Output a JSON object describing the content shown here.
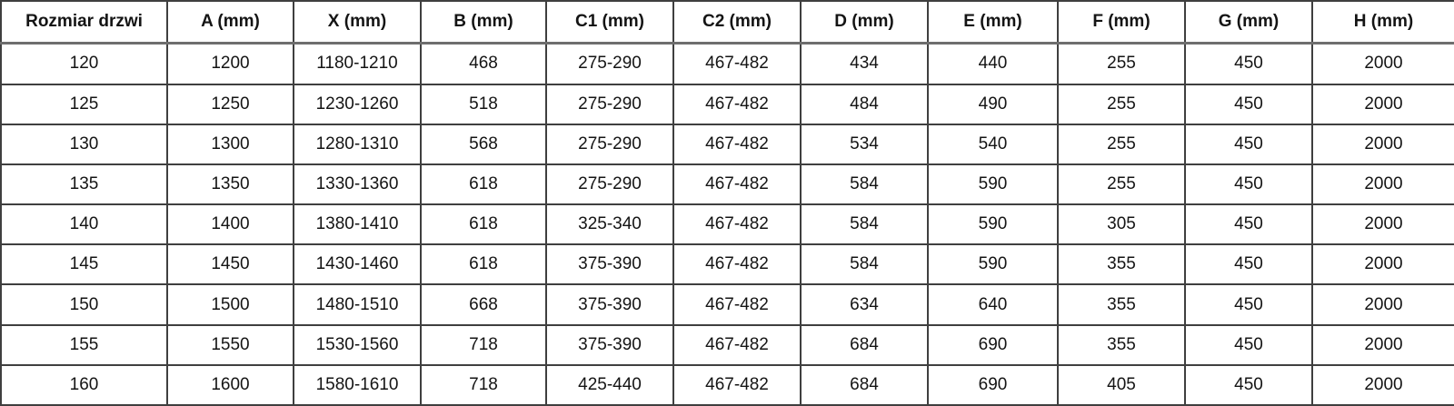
{
  "table": {
    "columns": [
      "Rozmiar drzwi",
      "A (mm)",
      "X (mm)",
      "B (mm)",
      "C1 (mm)",
      "C2 (mm)",
      "D (mm)",
      "E (mm)",
      "F (mm)",
      "G (mm)",
      "H (mm)"
    ],
    "rows": [
      [
        "120",
        "1200",
        "1180-1210",
        "468",
        "275-290",
        "467-482",
        "434",
        "440",
        "255",
        "450",
        "2000"
      ],
      [
        "125",
        "1250",
        "1230-1260",
        "518",
        "275-290",
        "467-482",
        "484",
        "490",
        "255",
        "450",
        "2000"
      ],
      [
        "130",
        "1300",
        "1280-1310",
        "568",
        "275-290",
        "467-482",
        "534",
        "540",
        "255",
        "450",
        "2000"
      ],
      [
        "135",
        "1350",
        "1330-1360",
        "618",
        "275-290",
        "467-482",
        "584",
        "590",
        "255",
        "450",
        "2000"
      ],
      [
        "140",
        "1400",
        "1380-1410",
        "618",
        "325-340",
        "467-482",
        "584",
        "590",
        "305",
        "450",
        "2000"
      ],
      [
        "145",
        "1450",
        "1430-1460",
        "618",
        "375-390",
        "467-482",
        "584",
        "590",
        "355",
        "450",
        "2000"
      ],
      [
        "150",
        "1500",
        "1480-1510",
        "668",
        "375-390",
        "467-482",
        "634",
        "640",
        "355",
        "450",
        "2000"
      ],
      [
        "155",
        "1550",
        "1530-1560",
        "718",
        "375-390",
        "467-482",
        "684",
        "690",
        "355",
        "450",
        "2000"
      ],
      [
        "160",
        "1600",
        "1580-1610",
        "718",
        "425-440",
        "467-482",
        "684",
        "690",
        "405",
        "450",
        "2000"
      ]
    ]
  },
  "colors": {
    "background": "#ffffff",
    "text": "#141414",
    "grid_border": "#3f3f3f",
    "outer_border": "#222222",
    "header_underline": "#6e6e6e"
  }
}
